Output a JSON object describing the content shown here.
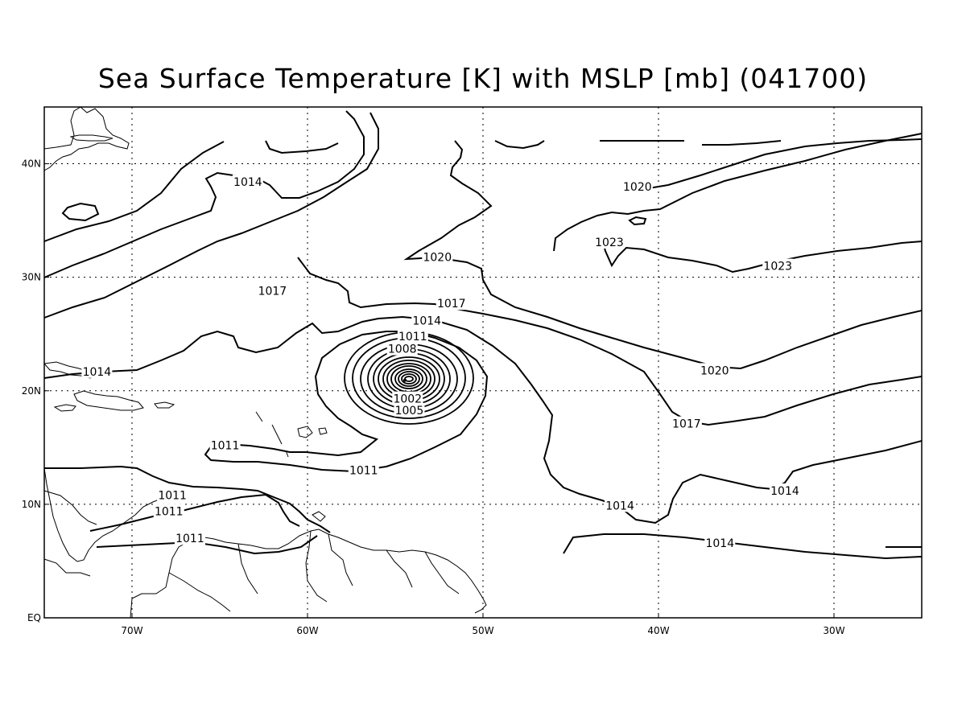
{
  "title": "Sea Surface Temperature [K] with MSLP [mb] (041700)",
  "axes": {
    "x_ticks": [
      {
        "lon": -70,
        "label": "70W"
      },
      {
        "lon": -60,
        "label": "60W"
      },
      {
        "lon": -50,
        "label": "50W"
      },
      {
        "lon": -40,
        "label": "40W"
      },
      {
        "lon": -30,
        "label": "30W"
      }
    ],
    "y_ticks": [
      {
        "lat": 0,
        "label": "EQ"
      },
      {
        "lat": 10,
        "label": "10N"
      },
      {
        "lat": 20,
        "label": "20N"
      },
      {
        "lat": 30,
        "label": "30N"
      },
      {
        "lat": 40,
        "label": "40N"
      }
    ],
    "lon_range": [
      -75,
      -25
    ],
    "lat_range": [
      0,
      45
    ],
    "grid": "dotted"
  },
  "cyclone_center": {
    "lon": -54.5,
    "lat": 21
  },
  "isobar_labels": [
    {
      "text": "1014",
      "lon": -63.4,
      "lat": 38.4
    },
    {
      "text": "1017",
      "lon": -62.0,
      "lat": 28.8
    },
    {
      "text": "1020",
      "lon": -52.6,
      "lat": 31.8
    },
    {
      "text": "1017",
      "lon": -51.8,
      "lat": 27.7
    },
    {
      "text": "1014",
      "lon": -53.2,
      "lat": 26.2
    },
    {
      "text": "1011",
      "lon": -54.0,
      "lat": 24.8
    },
    {
      "text": "1008",
      "lon": -54.6,
      "lat": 23.7
    },
    {
      "text": "1005",
      "lon": -54.2,
      "lat": 18.3
    },
    {
      "text": "1002",
      "lon": -54.3,
      "lat": 19.3
    },
    {
      "text": "1014",
      "lon": -72.0,
      "lat": 21.7
    },
    {
      "text": "1011",
      "lon": -64.7,
      "lat": 15.2
    },
    {
      "text": "1011",
      "lon": -56.8,
      "lat": 13.0
    },
    {
      "text": "1011",
      "lon": -67.7,
      "lat": 10.8
    },
    {
      "text": "1011",
      "lon": -67.9,
      "lat": 9.4
    },
    {
      "text": "1011",
      "lon": -66.7,
      "lat": 7.0
    },
    {
      "text": "1020",
      "lon": -41.2,
      "lat": 38.0
    },
    {
      "text": "1023",
      "lon": -42.8,
      "lat": 33.1
    },
    {
      "text": "1023",
      "lon": -33.2,
      "lat": 31.0
    },
    {
      "text": "1020",
      "lon": -36.8,
      "lat": 21.8
    },
    {
      "text": "1017",
      "lon": -38.4,
      "lat": 17.1
    },
    {
      "text": "1014",
      "lon": -32.8,
      "lat": 11.2
    },
    {
      "text": "1014",
      "lon": -42.2,
      "lat": 9.9
    },
    {
      "text": "1014",
      "lon": -36.5,
      "lat": 6.6
    }
  ]
}
